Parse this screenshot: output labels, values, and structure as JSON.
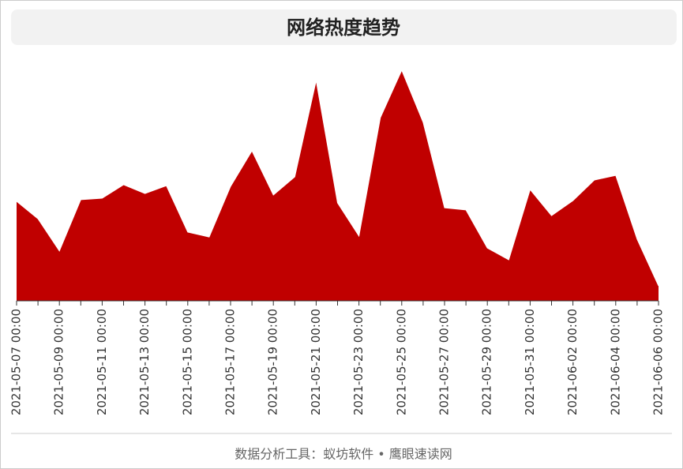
{
  "chart_data": {
    "type": "area",
    "title": "网络热度趋势",
    "categories": [
      "2021-05-07 00:00",
      null,
      "2021-05-09 00:00",
      null,
      "2021-05-11 00:00",
      null,
      "2021-05-13 00:00",
      null,
      "2021-05-15 00:00",
      null,
      "2021-05-17 00:00",
      null,
      "2021-05-19 00:00",
      null,
      "2021-05-21 00:00",
      null,
      "2021-05-23 00:00",
      null,
      "2021-05-25 00:00",
      null,
      "2021-05-27 00:00",
      null,
      "2021-05-29 00:00",
      null,
      "2021-05-31 00:00",
      null,
      "2021-06-02 00:00",
      null,
      "2021-06-04 00:00",
      null,
      "2021-06-06 00:00"
    ],
    "values": [
      40.5,
      33.4,
      20.3,
      41.2,
      41.8,
      47.3,
      43.7,
      46.9,
      28.0,
      26.0,
      46.6,
      61.1,
      43.1,
      50.5,
      89.7,
      39.9,
      26.4,
      74.6,
      93.9,
      72.7,
      37.9,
      37.0,
      21.5,
      16.7,
      45.3,
      34.7,
      40.8,
      49.2,
      51.1,
      25.1,
      6.1
    ],
    "color": "#c00000",
    "ylim": [
      0,
      100
    ]
  },
  "footer": "数据分析工具：蚁坊软件 • 鹰眼速读网"
}
